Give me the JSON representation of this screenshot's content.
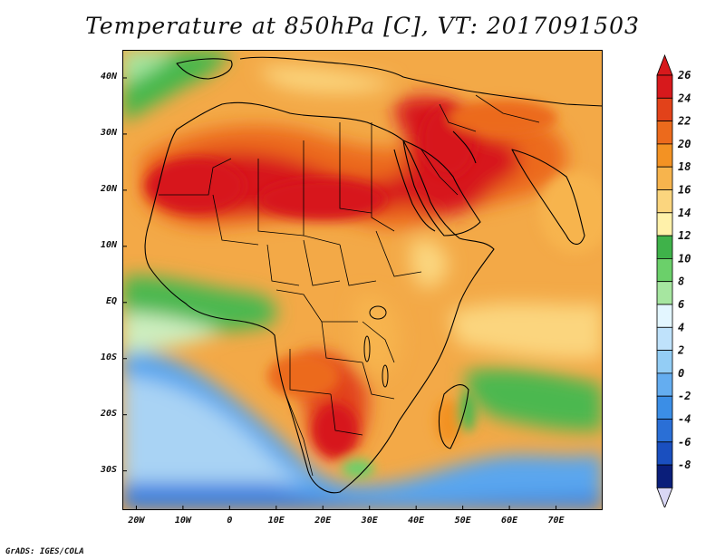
{
  "title": "Temperature at 850hPa [C], VT: 2017091503",
  "credit": "GrADS: IGES/COLA",
  "map": {
    "lon_range": [
      -23,
      80
    ],
    "lat_range": [
      -37,
      45
    ],
    "lon_ticks": [
      "20W",
      "10W",
      "0",
      "10E",
      "20E",
      "30E",
      "40E",
      "50E",
      "60E",
      "70E"
    ],
    "lat_ticks": [
      "40N",
      "30N",
      "20N",
      "10N",
      "EQ",
      "10S",
      "20S",
      "30S"
    ],
    "colors": {
      "ocean": "#3b8ee6",
      "land_base": "#f2a94a"
    }
  },
  "colorbar": {
    "labels": [
      "26",
      "24",
      "22",
      "20",
      "18",
      "16",
      "14",
      "12",
      "10",
      "8",
      "6",
      "4",
      "2",
      "0",
      "-2",
      "-4",
      "-6",
      "-8"
    ],
    "colors": [
      "#d7191c",
      "#e2421a",
      "#ec6a1c",
      "#f39223",
      "#f7b44d",
      "#fbd57e",
      "#fff1aa",
      "#3fb24a",
      "#6bd06a",
      "#a6e6a0",
      "#e3f6ff",
      "#bfe2fb",
      "#93cdf5",
      "#64adf0",
      "#3b8ee6",
      "#2a6fd6",
      "#1a4fbf",
      "#0a1e7a"
    ]
  }
}
